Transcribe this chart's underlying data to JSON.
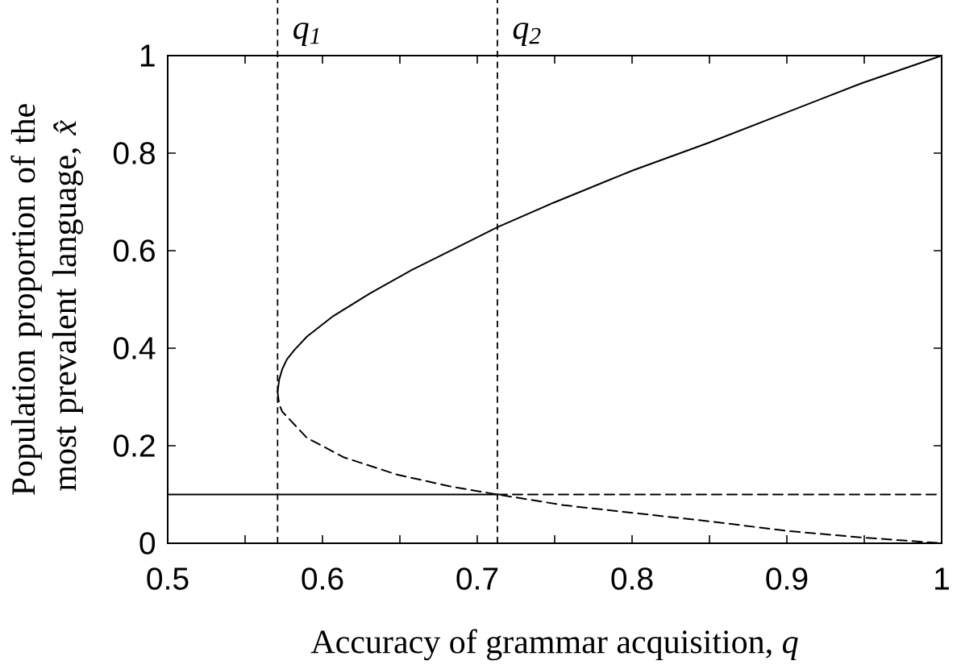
{
  "chart_data": {
    "type": "line",
    "xlabel": "Accuracy of grammar acquisition, *q*",
    "ylabel": "Population proportion of the most prevalent language, *x̂*",
    "xlim": [
      0.5,
      1
    ],
    "ylim": [
      0,
      1
    ],
    "xticks": [
      0.5,
      {
        "value": 0.55,
        "label": null
      },
      0.6,
      {
        "value": 0.65,
        "label": null
      },
      0.7,
      {
        "value": 0.75,
        "label": null
      },
      0.8,
      {
        "value": 0.85,
        "label": null
      },
      0.9,
      {
        "value": 0.95,
        "label": null
      },
      1
    ],
    "yticks": [
      0,
      0.2,
      0.4,
      0.6,
      0.8,
      1
    ],
    "series": [
      {
        "color": "#000000",
        "line_style": "solid",
        "x": [
          0.571,
          0.572,
          0.574,
          0.577,
          0.582,
          0.59,
          0.607,
          0.631,
          0.658,
          0.686,
          0.713,
          0.749,
          0.8,
          0.85,
          0.901,
          0.948,
          1.0
        ],
        "values": [
          0.31,
          0.335,
          0.357,
          0.377,
          0.397,
          0.424,
          0.466,
          0.513,
          0.561,
          0.605,
          0.648,
          0.698,
          0.764,
          0.822,
          0.885,
          0.943,
          1.0
        ]
      },
      {
        "color": "#000000",
        "line_style": "dashed",
        "x": [
          0.571,
          0.572,
          0.574,
          0.579,
          0.59,
          0.614,
          0.648,
          0.682,
          0.713,
          0.756,
          0.79,
          0.85,
          0.901,
          0.948,
          1.0
        ],
        "values": [
          0.31,
          0.285,
          0.27,
          0.253,
          0.216,
          0.176,
          0.141,
          0.117,
          0.1,
          0.078,
          0.066,
          0.045,
          0.025,
          0.012,
          0.0
        ]
      },
      {
        "color": "#000000",
        "line_style": "solid",
        "x": [
          0.5,
          0.713
        ],
        "values": [
          0.1,
          0.1
        ]
      },
      {
        "color": "#000000",
        "line_style": "dashed",
        "x": [
          0.713,
          1.0
        ],
        "values": [
          0.1,
          0.1
        ]
      }
    ],
    "ref_lines": [
      {
        "axis": "x",
        "value": 0.571,
        "label": "q$_{1}$",
        "line_style": "dashed",
        "color": "#000000"
      },
      {
        "axis": "x",
        "value": 0.713,
        "label": "q$_{2}$",
        "line_style": "dashed",
        "color": "#000000"
      }
    ]
  }
}
